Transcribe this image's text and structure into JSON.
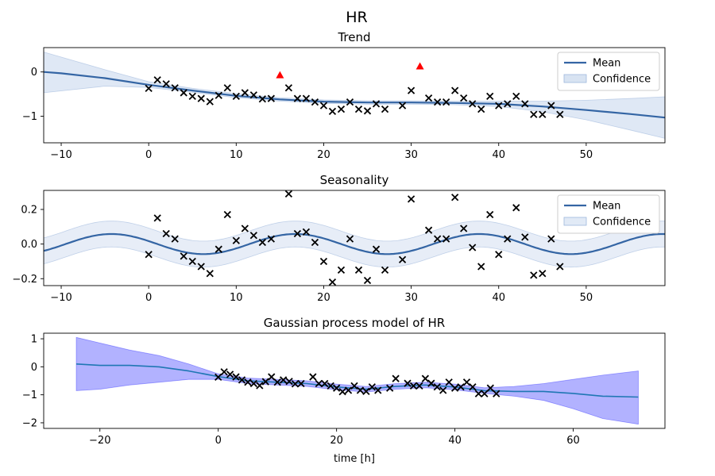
{
  "chart_data": [
    {
      "type": "line",
      "suptitle": "HR",
      "title": "Trend",
      "xlim": [
        -12,
        59
      ],
      "ylim": [
        -1.6,
        0.55
      ],
      "xticks": [
        -10,
        0,
        10,
        20,
        30,
        40,
        50
      ],
      "yticks": [
        -1,
        0
      ],
      "legend": {
        "position": "top-right",
        "entries": [
          "Mean",
          "Confidence"
        ]
      },
      "colors": {
        "mean": "#3465a4",
        "band": "#b8cce8",
        "points": "#000000",
        "outliers": "#ff0000"
      },
      "mean": {
        "x": [
          -12,
          -10,
          -5,
          0,
          5,
          10,
          15,
          20,
          25,
          30,
          35,
          40,
          45,
          50,
          55,
          59
        ],
        "y": [
          0,
          -0.03,
          -0.14,
          -0.29,
          -0.42,
          -0.54,
          -0.62,
          -0.67,
          -0.69,
          -0.69,
          -0.7,
          -0.72,
          -0.78,
          -0.86,
          -0.95,
          -1.03
        ]
      },
      "band": {
        "x": [
          -12,
          -5,
          0,
          5,
          10,
          15,
          20,
          25,
          30,
          35,
          40,
          45,
          50,
          55,
          59
        ],
        "lower": [
          -0.47,
          -0.32,
          -0.35,
          -0.46,
          -0.58,
          -0.66,
          -0.71,
          -0.73,
          -0.73,
          -0.74,
          -0.78,
          -0.9,
          -1.08,
          -1.31,
          -1.5
        ],
        "upper": [
          0.45,
          0.05,
          -0.22,
          -0.37,
          -0.49,
          -0.58,
          -0.63,
          -0.65,
          -0.65,
          -0.66,
          -0.66,
          -0.66,
          -0.64,
          -0.6,
          -0.56
        ]
      },
      "points": {
        "x": [
          0,
          1,
          2,
          3,
          4,
          5,
          6,
          7,
          8,
          9,
          10,
          11,
          12,
          13,
          14,
          16,
          17,
          18,
          19,
          20,
          21,
          22,
          23,
          24,
          25,
          26,
          27,
          29,
          30,
          32,
          33,
          34,
          35,
          36,
          37,
          38,
          39,
          40,
          41,
          42,
          43,
          44,
          45,
          46,
          47
        ],
        "y": [
          -0.37,
          -0.18,
          -0.27,
          -0.36,
          -0.47,
          -0.55,
          -0.6,
          -0.67,
          -0.53,
          -0.36,
          -0.55,
          -0.47,
          -0.52,
          -0.61,
          -0.6,
          -0.36,
          -0.6,
          -0.6,
          -0.68,
          -0.76,
          -0.89,
          -0.84,
          -0.68,
          -0.84,
          -0.88,
          -0.72,
          -0.84,
          -0.76,
          -0.42,
          -0.59,
          -0.68,
          -0.68,
          -0.42,
          -0.59,
          -0.72,
          -0.84,
          -0.55,
          -0.76,
          -0.72,
          -0.55,
          -0.72,
          -0.96,
          -0.96,
          -0.76,
          -0.96
        ]
      },
      "outliers": {
        "x": [
          15,
          31
        ],
        "y": [
          -0.07,
          0.13
        ]
      }
    },
    {
      "type": "line",
      "title": "Seasonality",
      "xlim": [
        -12,
        59
      ],
      "ylim": [
        -0.24,
        0.31
      ],
      "xticks": [
        -10,
        0,
        10,
        20,
        30,
        40,
        50
      ],
      "yticks": [
        -0.2,
        0.0,
        0.2
      ],
      "ytick_labels": [
        "−0.2",
        "0.0",
        "0.2"
      ],
      "legend": {
        "position": "top-right",
        "entries": [
          "Mean",
          "Confidence"
        ]
      },
      "colors": {
        "mean": "#3465a4",
        "band": "#c9d8ee",
        "points": "#000000"
      },
      "seasonal": {
        "amplitude": 0.058,
        "period": 21,
        "phase_x": -4.25,
        "band_halfwidth": 0.075
      },
      "points": {
        "x": [
          0,
          1,
          2,
          3,
          4,
          5,
          6,
          7,
          8,
          9,
          10,
          11,
          12,
          13,
          14,
          16,
          17,
          18,
          19,
          20,
          21,
          22,
          23,
          24,
          25,
          26,
          27,
          29,
          30,
          32,
          33,
          34,
          35,
          36,
          37,
          38,
          39,
          40,
          41,
          42,
          43,
          44,
          45,
          46,
          47
        ],
        "y": [
          -0.06,
          0.15,
          0.06,
          0.03,
          -0.07,
          -0.1,
          -0.13,
          -0.17,
          -0.03,
          0.17,
          0.02,
          0.09,
          0.05,
          0.01,
          0.03,
          0.29,
          0.06,
          0.07,
          0.01,
          -0.1,
          -0.22,
          -0.15,
          0.03,
          -0.15,
          -0.21,
          -0.03,
          -0.15,
          -0.09,
          0.26,
          0.08,
          0.03,
          0.03,
          0.27,
          0.09,
          -0.02,
          -0.13,
          0.17,
          -0.06,
          0.03,
          0.21,
          0.04,
          -0.18,
          -0.17,
          0.03,
          -0.13
        ]
      }
    },
    {
      "type": "line",
      "title": "Gaussian process model of HR",
      "xlabel": "time [h]",
      "xlim": [
        -29.5,
        75.5
      ],
      "ylim": [
        -2.2,
        1.2
      ],
      "xticks": [
        -20,
        0,
        20,
        40,
        60
      ],
      "xtick_labels": [
        "−20",
        "0",
        "20",
        "40",
        "60"
      ],
      "yticks": [
        -2,
        -1,
        0,
        1
      ],
      "ytick_labels": [
        "−2",
        "−1",
        "0",
        "1"
      ],
      "colors": {
        "mean": "#1f77b4",
        "band": "#0000ff",
        "points": "#000000"
      },
      "mean": {
        "x": [
          -24,
          -20,
          -15,
          -10,
          -5,
          0,
          5,
          10,
          15,
          20,
          25,
          30,
          35,
          40,
          45,
          50,
          55,
          60,
          65,
          71
        ],
        "y": [
          0.1,
          0.05,
          0.05,
          0.0,
          -0.15,
          -0.35,
          -0.5,
          -0.55,
          -0.6,
          -0.72,
          -0.8,
          -0.7,
          -0.65,
          -0.72,
          -0.85,
          -0.88,
          -0.88,
          -0.95,
          -1.05,
          -1.08
        ]
      },
      "band": {
        "x": [
          -24,
          -20,
          -15,
          -10,
          -5,
          0,
          5,
          10,
          15,
          20,
          25,
          30,
          35,
          40,
          45,
          50,
          55,
          60,
          65,
          71
        ],
        "lower": [
          -0.85,
          -0.8,
          -0.65,
          -0.55,
          -0.45,
          -0.45,
          -0.6,
          -0.65,
          -0.7,
          -0.82,
          -0.9,
          -0.8,
          -0.75,
          -0.82,
          -0.95,
          -1.05,
          -1.2,
          -1.5,
          -1.85,
          -2.05
        ],
        "upper": [
          1.05,
          0.85,
          0.6,
          0.4,
          0.1,
          -0.25,
          -0.4,
          -0.45,
          -0.5,
          -0.62,
          -0.7,
          -0.6,
          -0.55,
          -0.62,
          -0.75,
          -0.7,
          -0.6,
          -0.45,
          -0.3,
          -0.15
        ]
      },
      "points": {
        "x": [
          0,
          1,
          2,
          3,
          4,
          5,
          6,
          7,
          8,
          9,
          10,
          11,
          12,
          13,
          14,
          16,
          17,
          18,
          19,
          20,
          21,
          22,
          23,
          24,
          25,
          26,
          27,
          29,
          30,
          32,
          33,
          34,
          35,
          36,
          37,
          38,
          39,
          40,
          41,
          42,
          43,
          44,
          45,
          46,
          47
        ],
        "y": [
          -0.37,
          -0.18,
          -0.27,
          -0.36,
          -0.47,
          -0.55,
          -0.6,
          -0.67,
          -0.53,
          -0.36,
          -0.55,
          -0.47,
          -0.52,
          -0.61,
          -0.6,
          -0.36,
          -0.6,
          -0.6,
          -0.68,
          -0.76,
          -0.89,
          -0.84,
          -0.68,
          -0.84,
          -0.88,
          -0.72,
          -0.84,
          -0.76,
          -0.42,
          -0.59,
          -0.68,
          -0.68,
          -0.42,
          -0.59,
          -0.72,
          -0.84,
          -0.55,
          -0.76,
          -0.72,
          -0.55,
          -0.72,
          -0.96,
          -0.96,
          -0.76,
          -0.96
        ]
      }
    }
  ]
}
